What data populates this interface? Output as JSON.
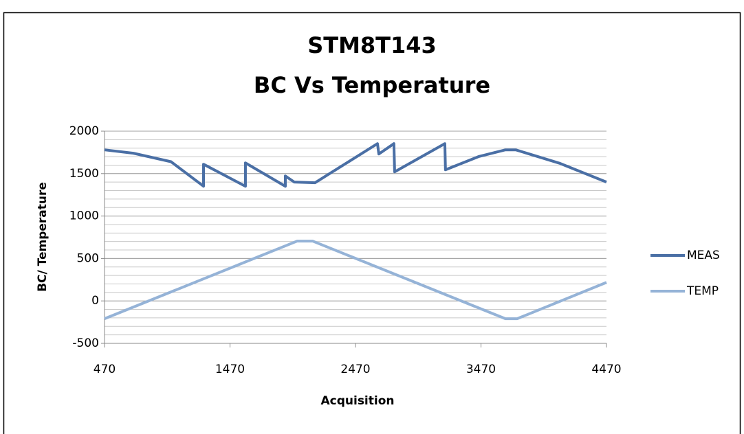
{
  "chart_data": {
    "type": "line",
    "title": [
      "STM8T143",
      "BC Vs Temperature"
    ],
    "x_label": "Acquisition",
    "y_label": "BC/ Temperature",
    "xlim": [
      470,
      4470
    ],
    "xticks": [
      470,
      1470,
      2470,
      3470,
      4470
    ],
    "ylim": [
      -500,
      2000
    ],
    "yticks": [
      -500,
      0,
      500,
      1000,
      1500,
      2000
    ],
    "grid": true,
    "minor_grid_step": 100,
    "legend": "right",
    "series": [
      {
        "name": "MEAS",
        "color": "#4a6fa5",
        "x": [
          470,
          700,
          1000,
          1259,
          1259,
          1593,
          1593,
          1911,
          1911,
          1982,
          2147,
          2645,
          2656,
          2776,
          2782,
          3182,
          3187,
          3450,
          3665,
          3747,
          4100,
          4470
        ],
        "values": [
          1780,
          1740,
          1640,
          1351,
          1610,
          1351,
          1626,
          1351,
          1472,
          1400,
          1392,
          1853,
          1731,
          1853,
          1521,
          1853,
          1545,
          1700,
          1780,
          1780,
          1620,
          1400
        ]
      },
      {
        "name": "TEMP",
        "color": "#95b3d7",
        "x": [
          470,
          2004,
          2130,
          3665,
          3758,
          4470
        ],
        "values": [
          -210,
          704,
          704,
          -210,
          -210,
          218
        ]
      }
    ]
  }
}
